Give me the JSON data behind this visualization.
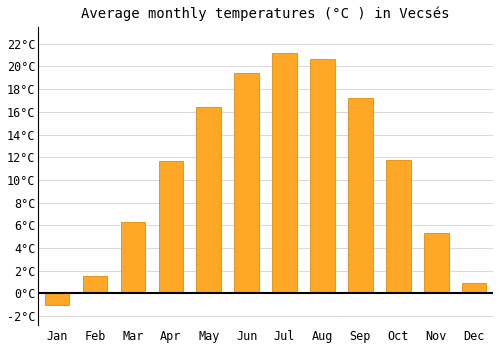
{
  "title": "Average monthly temperatures (°C ) in Vecsés",
  "months": [
    "Jan",
    "Feb",
    "Mar",
    "Apr",
    "May",
    "Jun",
    "Jul",
    "Aug",
    "Sep",
    "Oct",
    "Nov",
    "Dec"
  ],
  "values": [
    -1.0,
    1.5,
    6.3,
    11.7,
    16.4,
    19.4,
    21.2,
    20.7,
    17.2,
    11.8,
    5.3,
    0.9
  ],
  "bar_color": "#FFA726",
  "bar_edge_color": "#E09000",
  "background_color": "#ffffff",
  "grid_color": "#d8d8d8",
  "ylim": [
    -2.8,
    23.5
  ],
  "yticks": [
    -2,
    0,
    2,
    4,
    6,
    8,
    10,
    12,
    14,
    16,
    18,
    20,
    22
  ],
  "title_fontsize": 10,
  "tick_fontsize": 8.5,
  "bar_width": 0.65
}
